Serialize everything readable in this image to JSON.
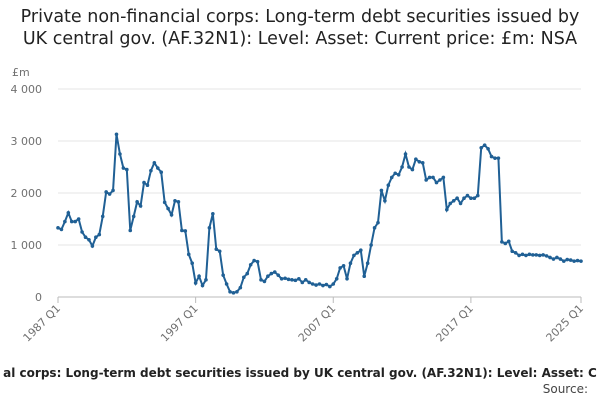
{
  "chart_data": {
    "type": "line",
    "title": "Private non-financial corps: Long-term debt securities issued by UK central gov. (AF.32N1): Level: Asset: Current price: £m: NSA",
    "y_unit": "£m",
    "footer": "al corps: Long-term debt securities issued by UK central gov. (AF.32N1): Level: Asset: C",
    "source": "Source:",
    "categories": [
      "1987 Q1",
      null,
      null,
      null,
      null,
      null,
      null,
      null,
      null,
      null,
      null,
      null,
      null,
      null,
      null,
      null,
      null,
      null,
      null,
      null,
      null,
      null,
      null,
      null,
      null,
      null,
      null,
      null,
      null,
      null,
      null,
      null,
      null,
      null,
      null,
      null,
      null,
      null,
      null,
      null,
      "1997 Q1",
      null,
      null,
      null,
      null,
      null,
      null,
      null,
      null,
      null,
      null,
      null,
      null,
      null,
      null,
      null,
      null,
      null,
      null,
      null,
      null,
      null,
      null,
      null,
      null,
      null,
      null,
      null,
      null,
      null,
      null,
      null,
      null,
      null,
      null,
      null,
      null,
      null,
      null,
      null,
      "2007 Q1",
      null,
      null,
      null,
      null,
      null,
      null,
      null,
      null,
      null,
      null,
      null,
      null,
      null,
      null,
      null,
      null,
      null,
      null,
      null,
      null,
      null,
      null,
      null,
      null,
      null,
      null,
      null,
      null,
      null,
      null,
      null,
      null,
      null,
      null,
      null,
      null,
      null,
      null,
      null,
      "2017 Q1",
      null,
      null,
      null,
      null,
      null,
      null,
      null,
      null,
      null,
      null,
      null,
      null,
      null,
      null,
      null,
      null,
      null,
      null,
      null,
      null,
      null,
      null,
      null,
      null,
      null,
      null,
      null,
      null,
      null,
      null,
      null,
      "2025 Q1"
    ],
    "series": [
      {
        "name": "AF.32N1",
        "color": "#206095",
        "values": [
          1330,
          1300,
          1450,
          1620,
          1450,
          1450,
          1500,
          1250,
          1150,
          1100,
          980,
          1150,
          1200,
          1550,
          2020,
          1980,
          2050,
          3130,
          2750,
          2480,
          2450,
          1280,
          1550,
          1830,
          1750,
          2200,
          2150,
          2430,
          2580,
          2480,
          2400,
          1820,
          1700,
          1580,
          1850,
          1830,
          1280,
          1270,
          820,
          650,
          270,
          400,
          220,
          330,
          1330,
          1600,
          920,
          880,
          420,
          250,
          100,
          80,
          100,
          180,
          380,
          450,
          620,
          700,
          680,
          330,
          300,
          400,
          450,
          480,
          420,
          350,
          360,
          340,
          330,
          320,
          350,
          280,
          330,
          280,
          250,
          230,
          250,
          220,
          240,
          200,
          250,
          350,
          560,
          600,
          350,
          650,
          800,
          850,
          900,
          400,
          650,
          1000,
          1330,
          1430,
          2050,
          1850,
          2150,
          2300,
          2380,
          2350,
          2500,
          2750,
          2500,
          2450,
          2650,
          2600,
          2580,
          2250,
          2300,
          2300,
          2200,
          2250,
          2300,
          1680,
          1800,
          1850,
          1900,
          1800,
          1900,
          1950,
          1900,
          1900,
          1950,
          2870,
          2920,
          2850,
          2700,
          2670,
          2670,
          1060,
          1030,
          1070,
          880,
          850,
          800,
          820,
          800,
          820,
          810,
          810,
          800,
          810,
          790,
          760,
          730,
          760,
          730,
          690,
          720,
          710,
          690,
          700,
          690
        ]
      }
    ],
    "ylim": [
      0,
      4000
    ],
    "yticks": [
      0,
      {
        "value": 1000,
        "label": "1 000"
      },
      {
        "value": 2000,
        "label": "2 000"
      },
      {
        "value": 3000,
        "label": "3 000"
      },
      {
        "value": 4000,
        "label": "4 000"
      }
    ],
    "grid": true
  }
}
